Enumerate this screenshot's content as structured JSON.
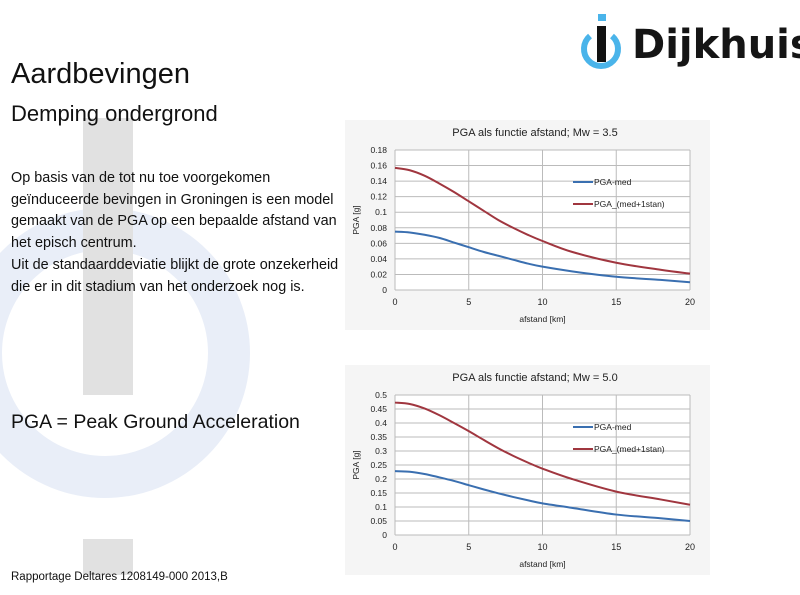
{
  "logo": {
    "name": "Dijkhuis"
  },
  "title": "Aardbevingen",
  "subtitle": "Demping ondergrond",
  "paragraphs": [
    "Op basis van de tot nu toe voorgekomen geïnduceerde bevingen in Groningen is een model gemaakt van de PGA op een bepaalde afstand van het episch centrum.",
    "Uit de standaarddeviatie blijkt de grote onzekerheid die er in dit stadium van het onderzoek nog is."
  ],
  "definition": "PGA = Peak Ground Acceleration",
  "source": "Rapportage Deltares 1208149-000  2013,B",
  "colors": {
    "med": "#3a6fb0",
    "upper": "#a0363f",
    "watermark_ring": "#e9eef8"
  },
  "chart_data": [
    {
      "type": "line",
      "title": "PGA als functie afstand; Mw = 3.5",
      "xlabel": "afstand [km]",
      "ylabel": "PGA [g]",
      "xlim": [
        0,
        20
      ],
      "ylim": [
        0,
        0.18
      ],
      "xticks": [
        "0",
        "5",
        "10",
        "15",
        "20"
      ],
      "yticks": [
        "0",
        "0.02",
        "0.04",
        "0.06",
        "0.08",
        "0.1",
        "0.12",
        "0.14",
        "0.16",
        "0.18"
      ],
      "grid": true,
      "legend": "right",
      "x": [
        0,
        1,
        2,
        3,
        4,
        5,
        6,
        7,
        8,
        9,
        10,
        12,
        15,
        18,
        20
      ],
      "series": [
        {
          "name": "PGA-med",
          "values": [
            0.075,
            0.074,
            0.071,
            0.067,
            0.061,
            0.055,
            0.049,
            0.044,
            0.039,
            0.034,
            0.03,
            0.024,
            0.017,
            0.013,
            0.01
          ]
        },
        {
          "name": "PGA_(med+1stan)",
          "values": [
            0.157,
            0.154,
            0.147,
            0.137,
            0.126,
            0.114,
            0.102,
            0.09,
            0.08,
            0.071,
            0.063,
            0.049,
            0.035,
            0.026,
            0.021
          ]
        }
      ]
    },
    {
      "type": "line",
      "title": "PGA als functie afstand; Mw = 5.0",
      "xlabel": "afstand [km]",
      "ylabel": "PGA [g]",
      "xlim": [
        0,
        20
      ],
      "ylim": [
        0,
        0.5
      ],
      "xticks": [
        "0",
        "5",
        "10",
        "15",
        "20"
      ],
      "yticks": [
        "0",
        "0.05",
        "0.1",
        "0.15",
        "0.2",
        "0.25",
        "0.3",
        "0.35",
        "0.4",
        "0.45",
        "0.5"
      ],
      "grid": true,
      "legend": "right",
      "x": [
        0,
        1,
        2,
        3,
        4,
        5,
        6,
        7,
        8,
        9,
        10,
        12,
        15,
        18,
        20
      ],
      "series": [
        {
          "name": "PGA-med",
          "values": [
            0.228,
            0.226,
            0.218,
            0.206,
            0.193,
            0.178,
            0.163,
            0.149,
            0.136,
            0.124,
            0.113,
            0.097,
            0.073,
            0.06,
            0.05
          ]
        },
        {
          "name": "PGA_(med+1stan)",
          "values": [
            0.473,
            0.468,
            0.452,
            0.428,
            0.4,
            0.371,
            0.34,
            0.31,
            0.283,
            0.259,
            0.237,
            0.2,
            0.155,
            0.127,
            0.108
          ]
        }
      ]
    }
  ]
}
